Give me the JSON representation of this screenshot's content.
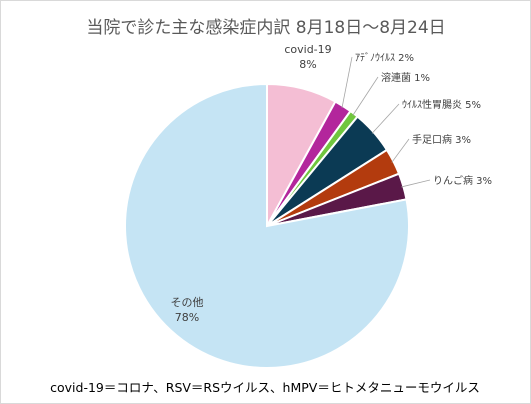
{
  "chart_data": {
    "type": "pie",
    "title": "当院で診た主な感染症内訳 8月18日～8月24日",
    "slices": [
      {
        "name": "covid-19",
        "value": 8,
        "value_label": "8%",
        "color": "#f4bed4"
      },
      {
        "name": "ｱﾃﾞﾉｳｲﾙｽ",
        "value": 2,
        "value_label": "2%",
        "color": "#b3269c"
      },
      {
        "name": "溶連菌",
        "value": 1,
        "value_label": "1%",
        "color": "#70c63e"
      },
      {
        "name": "ｳｲﾙｽ性胃腸炎",
        "value": 5,
        "value_label": "5%",
        "color": "#0b3a54"
      },
      {
        "name": "手足口病",
        "value": 3,
        "value_label": "3%",
        "color": "#b33b0e"
      },
      {
        "name": "りんご病",
        "value": 3,
        "value_label": "3%",
        "color": "#5a1848"
      },
      {
        "name": "その他",
        "value": 78,
        "value_label": "78%",
        "color": "#c5e4f4"
      }
    ],
    "footnote": "covid-19＝コロナ、RSV＝RSウイルス、hMPV＝ヒトメタニューモウイルス"
  }
}
